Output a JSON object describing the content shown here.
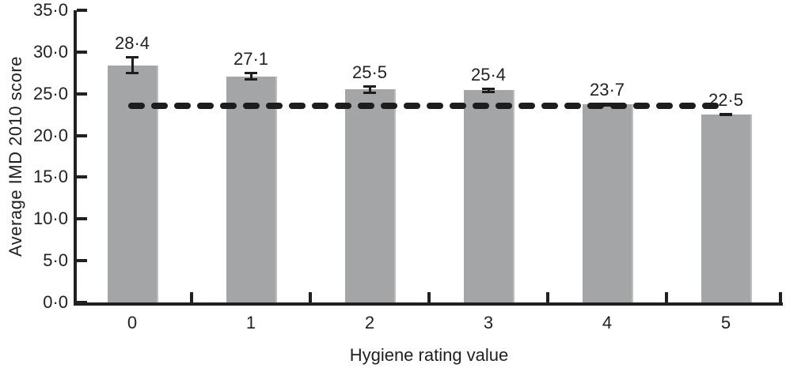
{
  "chart_data": {
    "type": "bar",
    "title": "",
    "xlabel": "Hygiene rating value",
    "ylabel": "Average IMD 2010 score",
    "categories": [
      "0",
      "1",
      "2",
      "3",
      "4",
      "5"
    ],
    "values": [
      28.4,
      27.1,
      25.5,
      25.4,
      23.7,
      22.5
    ],
    "value_labels": [
      "28·4",
      "27·1",
      "25·5",
      "25·4",
      "23·7",
      "22·5"
    ],
    "errors": [
      1.0,
      0.45,
      0.45,
      0.25,
      0.1,
      0.1
    ],
    "reference_line": {
      "value": 23.55,
      "style": "dashed",
      "color": "#1d1d1d"
    },
    "ylim": [
      0,
      35
    ],
    "ytick_values": [
      0,
      5,
      10,
      15,
      20,
      25,
      30,
      35
    ],
    "ytick_labels": [
      "0·0",
      "5·0",
      "10·0",
      "15·0",
      "20·0",
      "25·0",
      "30·0",
      "35·0"
    ],
    "grid": false,
    "legend_position": "none",
    "bar_color": "#a4a5a7",
    "bar_edge_highlight": "#bdbec0",
    "error_bar_color": "#1d1d1d",
    "axis_color": "#231f20",
    "text_color": "#231f20"
  }
}
